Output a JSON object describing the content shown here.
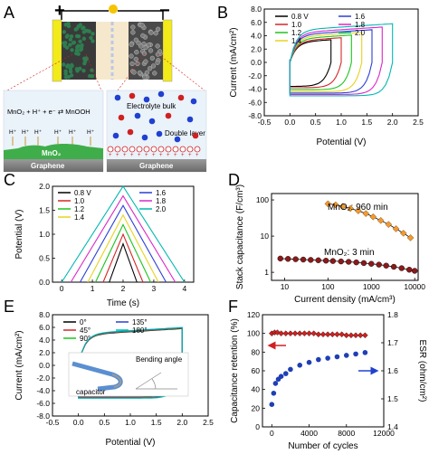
{
  "panel_letters": {
    "A": "A",
    "B": "B",
    "C": "C",
    "D": "D",
    "E": "E",
    "F": "F"
  },
  "colors": {
    "sweep": [
      "#000000",
      "#d62728",
      "#1ec41e",
      "#e8d21e",
      "#2a3fd6",
      "#d928c8",
      "#00b8b0",
      "#8b1a1a"
    ],
    "mno2": "#2e7d4f",
    "plate": "#f2ea19",
    "graphene": "#8a8a8a",
    "electrolyte_blue": "#2040d0",
    "electrolyte_red": "#d02020"
  },
  "panelA": {
    "plus_sign": "+",
    "minus_sign": "−",
    "left_equation": "MnO₂ + H⁺ + e⁻ ⇄ MnOOH",
    "hplus": "H⁺",
    "mno2_label": "MnO₂",
    "graphene_left": "Graphene",
    "graphene_right": "Graphene",
    "electrolyte_label": "Electrolyte bulk",
    "double_layer_label": "Double layer"
  },
  "chart_data": [
    {
      "id": "B",
      "type": "line",
      "xlabel": "Potential (V)",
      "ylabel": "Current (mA/cm²)",
      "xlim": [
        -0.5,
        2.5
      ],
      "ylim": [
        -8.0,
        8.0
      ],
      "xticks": [
        "-0.5",
        "0.0",
        "0.5",
        "1.0",
        "1.5",
        "2.0",
        "2.5"
      ],
      "yticks": [
        "-8.0",
        "-6.0",
        "-4.0",
        "-2.0",
        "0.0",
        "2.0",
        "4.0",
        "6.0",
        "8.0"
      ],
      "legend_position": "top",
      "series": [
        {
          "name": "0.8 V",
          "vmax": 0.8,
          "i_top": 3.0,
          "i_bot": -3.6
        },
        {
          "name": "1.0",
          "vmax": 1.0,
          "i_top": 3.2,
          "i_bot": -3.8
        },
        {
          "name": "1.2",
          "vmax": 1.2,
          "i_top": 3.5,
          "i_bot": -4.1
        },
        {
          "name": "1.4",
          "vmax": 1.4,
          "i_top": 3.8,
          "i_bot": -4.4
        },
        {
          "name": "1.6",
          "vmax": 1.6,
          "i_top": 4.1,
          "i_bot": -4.6
        },
        {
          "name": "1.8",
          "vmax": 1.8,
          "i_top": 4.4,
          "i_bot": -4.8
        },
        {
          "name": "2.0",
          "vmax": 2.0,
          "i_top": 4.8,
          "i_bot": -5.0
        }
      ]
    },
    {
      "id": "C",
      "type": "line",
      "xlabel": "Time (s)",
      "ylabel": "Potential (V)",
      "xlim": [
        -0.3,
        4.3
      ],
      "ylim": [
        0.0,
        2.0
      ],
      "xticks": [
        "0",
        "1",
        "2",
        "3",
        "4"
      ],
      "yticks": [
        "0.0",
        "0.5",
        "1.0",
        "1.5",
        "2.0"
      ],
      "legend_position": "top",
      "series": [
        {
          "name": "0.8 V",
          "vmax": 0.8,
          "t_peak": 2.0,
          "t_start": 1.55,
          "t_end": 2.45
        },
        {
          "name": "1.0",
          "vmax": 1.0,
          "t_peak": 2.0,
          "t_start": 1.35,
          "t_end": 2.65
        },
        {
          "name": "1.2",
          "vmax": 1.2,
          "t_peak": 2.0,
          "t_start": 1.1,
          "t_end": 2.9
        },
        {
          "name": "1.4",
          "vmax": 1.4,
          "t_peak": 2.0,
          "t_start": 0.85,
          "t_end": 3.15
        },
        {
          "name": "1.6",
          "vmax": 1.6,
          "t_peak": 2.0,
          "t_start": 0.6,
          "t_end": 3.4
        },
        {
          "name": "1.8",
          "vmax": 1.8,
          "t_peak": 2.0,
          "t_start": 0.3,
          "t_end": 3.7
        },
        {
          "name": "2.0",
          "vmax": 2.0,
          "t_peak": 2.0,
          "t_start": 0.0,
          "t_end": 4.0
        }
      ]
    },
    {
      "id": "D",
      "type": "scatter",
      "xscale": "log",
      "yscale": "log",
      "xlabel": "Current density (mA/cm³)",
      "ylabel": "Stack capacitance (F/cm³)",
      "xlim": [
        5,
        12000
      ],
      "ylim": [
        0.6,
        150
      ],
      "xticks": [
        "10",
        "100",
        "1000",
        "10000"
      ],
      "yticks": [
        "1",
        "10",
        "100"
      ],
      "annotations": [
        {
          "text": "MnO₂: 960 min"
        },
        {
          "text": "MnO₂: 3 min"
        }
      ],
      "series": [
        {
          "label": "MnO₂: 960 min",
          "x": [
            100,
            150,
            220,
            330,
            500,
            750,
            1100,
            1650,
            2500,
            3700,
            5500,
            8000
          ],
          "y": [
            78,
            73,
            66,
            58,
            50,
            42,
            34,
            27,
            21,
            16,
            12,
            9
          ]
        },
        {
          "label": "MnO₂: 3 min",
          "x": [
            8,
            12,
            18,
            27,
            40,
            60,
            90,
            130,
            200,
            300,
            450,
            670,
            1000,
            1500,
            2200,
            3300,
            5000,
            7500,
            10000
          ],
          "y": [
            2.4,
            2.35,
            2.3,
            2.25,
            2.2,
            2.15,
            2.1,
            2.05,
            2.0,
            1.95,
            1.88,
            1.8,
            1.72,
            1.63,
            1.53,
            1.42,
            1.3,
            1.18,
            1.1
          ]
        }
      ]
    },
    {
      "id": "E",
      "type": "line",
      "xlabel": "Potential (V)",
      "ylabel": "Current (mA/cm²)",
      "xlim": [
        -0.5,
        2.5
      ],
      "ylim": [
        -8.0,
        8.0
      ],
      "xticks": [
        "-0.5",
        "0.0",
        "0.5",
        "1.0",
        "1.5",
        "2.0",
        "2.5"
      ],
      "yticks": [
        "-8.0",
        "-6.0",
        "-4.0",
        "-2.0",
        "0.0",
        "2.0",
        "4.0",
        "6.0",
        "8.0"
      ],
      "legend_position": "top",
      "inset_labels": {
        "capacitor": "capacitor",
        "bending_angle": "Bending angle"
      },
      "series": [
        {
          "name": "0°"
        },
        {
          "name": "45°"
        },
        {
          "name": "90°"
        },
        {
          "name": "135°"
        },
        {
          "name": "180°"
        }
      ]
    },
    {
      "id": "F",
      "type": "scatter",
      "xlabel": "Number of cycles",
      "ylabel": "Capacitance retention (%)",
      "y2label": "ESR (ohm/cm²)",
      "xlim": [
        -1000,
        12000
      ],
      "ylim": [
        0,
        120
      ],
      "y2lim": [
        1.4,
        1.8
      ],
      "xticks": [
        "0",
        "4000",
        "8000",
        "12000"
      ],
      "yticks": [
        "0",
        "20",
        "40",
        "60",
        "80",
        "100",
        "120"
      ],
      "y2ticks": [
        "1.4",
        "1.5",
        "1.6",
        "1.7",
        "1.8"
      ],
      "series": [
        {
          "label": "Capacitance retention",
          "axis": "left",
          "x": [
            0,
            300,
            600,
            1000,
            1500,
            2000,
            2500,
            3000,
            3500,
            4000,
            4500,
            5000,
            5500,
            6000,
            6500,
            7000,
            7500,
            8000,
            8500,
            9000,
            9500,
            10000
          ],
          "y": [
            100,
            101,
            101,
            100,
            100,
            100,
            100,
            100,
            100,
            100,
            100,
            99,
            99,
            99,
            99,
            99,
            99,
            98,
            98,
            98,
            98,
            98
          ]
        },
        {
          "label": "ESR",
          "axis": "right",
          "x": [
            0,
            200,
            400,
            700,
            1000,
            1500,
            2000,
            3000,
            4000,
            5000,
            6000,
            7000,
            8000,
            9000,
            10000
          ],
          "y": [
            1.48,
            1.52,
            1.555,
            1.57,
            1.58,
            1.59,
            1.605,
            1.62,
            1.63,
            1.64,
            1.645,
            1.65,
            1.655,
            1.66,
            1.665
          ]
        }
      ]
    }
  ]
}
